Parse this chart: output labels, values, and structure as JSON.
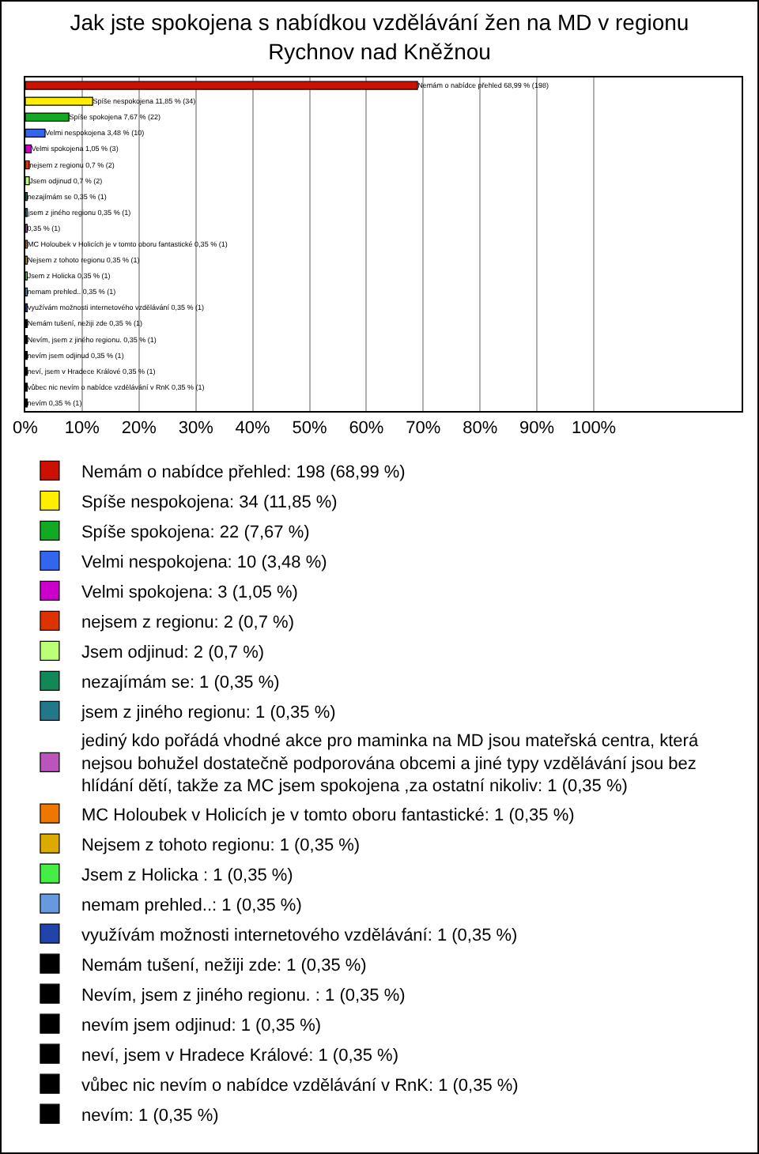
{
  "chart_data": {
    "type": "bar",
    "orientation": "horizontal",
    "title": "Jak jste spokojena s nabídkou vzdělávání žen na MD v regionu Rychnov nad Kněžnou",
    "categories": [
      null,
      null,
      null,
      null,
      null,
      null,
      null,
      null,
      null,
      null,
      null,
      null,
      null,
      null,
      null,
      null,
      null,
      null,
      null,
      null,
      null
    ],
    "series": [
      {
        "name": "Nemám o nabídce přehled: 198 (68,99 %)",
        "color": "#cc1100",
        "values": [
          68.99,
          null,
          null,
          null,
          null,
          null,
          null,
          null,
          null,
          null,
          null,
          null,
          null,
          null,
          null,
          null,
          null,
          null,
          null,
          null,
          null
        ],
        "value_labels": [
          "Nemám o nabídce přehled 68,99 % (198)",
          null,
          null,
          null,
          null,
          null,
          null,
          null,
          null,
          null,
          null,
          null,
          null,
          null,
          null,
          null,
          null,
          null,
          null,
          null,
          null
        ]
      },
      {
        "name": "Spíše nespokojena: 34 (11,85 %)",
        "color": "#ffee00",
        "values": [
          null,
          11.85,
          null,
          null,
          null,
          null,
          null,
          null,
          null,
          null,
          null,
          null,
          null,
          null,
          null,
          null,
          null,
          null,
          null,
          null,
          null
        ],
        "value_labels": [
          null,
          "Spíše nespokojena 11,85 % (34)",
          null,
          null,
          null,
          null,
          null,
          null,
          null,
          null,
          null,
          null,
          null,
          null,
          null,
          null,
          null,
          null,
          null,
          null,
          null
        ]
      },
      {
        "name": "Spíše spokojena: 22 (7,67 %)",
        "color": "#11aa22",
        "values": [
          null,
          null,
          7.67,
          null,
          null,
          null,
          null,
          null,
          null,
          null,
          null,
          null,
          null,
          null,
          null,
          null,
          null,
          null,
          null,
          null,
          null
        ],
        "value_labels": [
          null,
          null,
          "Spíše spokojena 7,67 % (22)",
          null,
          null,
          null,
          null,
          null,
          null,
          null,
          null,
          null,
          null,
          null,
          null,
          null,
          null,
          null,
          null,
          null,
          null
        ]
      },
      {
        "name": "Velmi nespokojena: 10 (3,48 %)",
        "color": "#3366ee",
        "values": [
          null,
          null,
          null,
          3.48,
          null,
          null,
          null,
          null,
          null,
          null,
          null,
          null,
          null,
          null,
          null,
          null,
          null,
          null,
          null,
          null,
          null
        ],
        "value_labels": [
          null,
          null,
          null,
          "Velmi nespokojena 3,48 % (10)",
          null,
          null,
          null,
          null,
          null,
          null,
          null,
          null,
          null,
          null,
          null,
          null,
          null,
          null,
          null,
          null,
          null
        ]
      },
      {
        "name": "Velmi spokojena: 3 (1,05 %)",
        "color": "#cc00cc",
        "values": [
          null,
          null,
          null,
          null,
          1.05,
          null,
          null,
          null,
          null,
          null,
          null,
          null,
          null,
          null,
          null,
          null,
          null,
          null,
          null,
          null,
          null
        ],
        "value_labels": [
          null,
          null,
          null,
          null,
          "Velmi spokojena 1,05 % (3)",
          null,
          null,
          null,
          null,
          null,
          null,
          null,
          null,
          null,
          null,
          null,
          null,
          null,
          null,
          null,
          null
        ]
      },
      {
        "name": "nejsem z regionu: 2 (0,7 %)",
        "color": "#dd3300",
        "values": [
          null,
          null,
          null,
          null,
          null,
          0.7,
          null,
          null,
          null,
          null,
          null,
          null,
          null,
          null,
          null,
          null,
          null,
          null,
          null,
          null,
          null
        ],
        "value_labels": [
          null,
          null,
          null,
          null,
          null,
          "nejsem z regionu 0,7 % (2)",
          null,
          null,
          null,
          null,
          null,
          null,
          null,
          null,
          null,
          null,
          null,
          null,
          null,
          null,
          null
        ]
      },
      {
        "name": "Jsem odjinud: 2 (0,7 %)",
        "color": "#bbff77",
        "values": [
          null,
          null,
          null,
          null,
          null,
          null,
          0.7,
          null,
          null,
          null,
          null,
          null,
          null,
          null,
          null,
          null,
          null,
          null,
          null,
          null,
          null
        ],
        "value_labels": [
          null,
          null,
          null,
          null,
          null,
          null,
          "Jsem odjinud 0,7 % (2)",
          null,
          null,
          null,
          null,
          null,
          null,
          null,
          null,
          null,
          null,
          null,
          null,
          null,
          null
        ]
      },
      {
        "name": "nezajímám se: 1 (0,35 %)",
        "color": "#118855",
        "values": [
          null,
          null,
          null,
          null,
          null,
          null,
          null,
          0.35,
          null,
          null,
          null,
          null,
          null,
          null,
          null,
          null,
          null,
          null,
          null,
          null,
          null
        ],
        "value_labels": [
          null,
          null,
          null,
          null,
          null,
          null,
          null,
          "nezajímám se 0,35 % (1)",
          null,
          null,
          null,
          null,
          null,
          null,
          null,
          null,
          null,
          null,
          null,
          null,
          null
        ]
      },
      {
        "name": "jsem z jiného regionu: 1 (0,35 %)",
        "color": "#227788",
        "values": [
          null,
          null,
          null,
          null,
          null,
          null,
          null,
          null,
          0.35,
          null,
          null,
          null,
          null,
          null,
          null,
          null,
          null,
          null,
          null,
          null,
          null
        ],
        "value_labels": [
          null,
          null,
          null,
          null,
          null,
          null,
          null,
          null,
          "jsem z jiného regionu 0,35 % (1)",
          null,
          null,
          null,
          null,
          null,
          null,
          null,
          null,
          null,
          null,
          null,
          null
        ]
      },
      {
        "name": "jediný kdo pořádá vhodné akce pro maminka na MD jsou mateřská centra, která nejsou bohužel dostatečně podporována obcemi a jiné typy vzdělávání jsou bez hlídání dětí, takže za MC jsem spokojena ,za ostatní nikoliv: 1 (0,35 %)",
        "color": "#bb55bb",
        "values": [
          null,
          null,
          null,
          null,
          null,
          null,
          null,
          null,
          null,
          0.35,
          null,
          null,
          null,
          null,
          null,
          null,
          null,
          null,
          null,
          null,
          null
        ],
        "value_labels": [
          null,
          null,
          null,
          null,
          null,
          null,
          null,
          null,
          null,
          "0,35 % (1)",
          null,
          null,
          null,
          null,
          null,
          null,
          null,
          null,
          null,
          null,
          null
        ]
      },
      {
        "name": "MC Holoubek v Holicích je v tomto oboru fantastické: 1 (0,35 %)",
        "color": "#ee7700",
        "values": [
          null,
          null,
          null,
          null,
          null,
          null,
          null,
          null,
          null,
          null,
          0.35,
          null,
          null,
          null,
          null,
          null,
          null,
          null,
          null,
          null,
          null
        ],
        "value_labels": [
          null,
          null,
          null,
          null,
          null,
          null,
          null,
          null,
          null,
          null,
          "MC Holoubek v Holicích je v tomto oboru fantastické 0,35 % (1)",
          null,
          null,
          null,
          null,
          null,
          null,
          null,
          null,
          null,
          null
        ]
      },
      {
        "name": "Nejsem z tohoto regionu: 1 (0,35 %)",
        "color": "#ddaa00",
        "values": [
          null,
          null,
          null,
          null,
          null,
          null,
          null,
          null,
          null,
          null,
          null,
          0.35,
          null,
          null,
          null,
          null,
          null,
          null,
          null,
          null,
          null
        ],
        "value_labels": [
          null,
          null,
          null,
          null,
          null,
          null,
          null,
          null,
          null,
          null,
          null,
          "Nejsem z tohoto regionu 0,35 % (1)",
          null,
          null,
          null,
          null,
          null,
          null,
          null,
          null,
          null
        ]
      },
      {
        "name": "Jsem z Holicka : 1 (0,35 %)",
        "color": "#44ee44",
        "values": [
          null,
          null,
          null,
          null,
          null,
          null,
          null,
          null,
          null,
          null,
          null,
          null,
          0.35,
          null,
          null,
          null,
          null,
          null,
          null,
          null,
          null
        ],
        "value_labels": [
          null,
          null,
          null,
          null,
          null,
          null,
          null,
          null,
          null,
          null,
          null,
          null,
          "Jsem z Holicka 0,35 % (1)",
          null,
          null,
          null,
          null,
          null,
          null,
          null,
          null
        ]
      },
      {
        "name": "nemam prehled..: 1 (0,35 %)",
        "color": "#6699dd",
        "values": [
          null,
          null,
          null,
          null,
          null,
          null,
          null,
          null,
          null,
          null,
          null,
          null,
          null,
          0.35,
          null,
          null,
          null,
          null,
          null,
          null,
          null
        ],
        "value_labels": [
          null,
          null,
          null,
          null,
          null,
          null,
          null,
          null,
          null,
          null,
          null,
          null,
          null,
          "nemam prehled.. 0,35 % (1)",
          null,
          null,
          null,
          null,
          null,
          null,
          null
        ]
      },
      {
        "name": "využívám možnosti internetového vzdělávání: 1 (0,35 %)",
        "color": "#2244aa",
        "values": [
          null,
          null,
          null,
          null,
          null,
          null,
          null,
          null,
          null,
          null,
          null,
          null,
          null,
          null,
          0.35,
          null,
          null,
          null,
          null,
          null,
          null
        ],
        "value_labels": [
          null,
          null,
          null,
          null,
          null,
          null,
          null,
          null,
          null,
          null,
          null,
          null,
          null,
          null,
          "využívám možnosti internetového vzdělávání 0,35 % (1)",
          null,
          null,
          null,
          null,
          null,
          null
        ]
      },
      {
        "name": "Nemám tušení, nežiji zde: 1 (0,35 %)",
        "color": "#000000",
        "values": [
          null,
          null,
          null,
          null,
          null,
          null,
          null,
          null,
          null,
          null,
          null,
          null,
          null,
          null,
          null,
          0.35,
          null,
          null,
          null,
          null,
          null
        ],
        "value_labels": [
          null,
          null,
          null,
          null,
          null,
          null,
          null,
          null,
          null,
          null,
          null,
          null,
          null,
          null,
          null,
          "Nemám tušení, nežiji zde 0,35 % (1)",
          null,
          null,
          null,
          null,
          null
        ]
      },
      {
        "name": "Nevím, jsem z jiného regionu. : 1 (0,35 %)",
        "color": "#000000",
        "values": [
          null,
          null,
          null,
          null,
          null,
          null,
          null,
          null,
          null,
          null,
          null,
          null,
          null,
          null,
          null,
          null,
          0.35,
          null,
          null,
          null,
          null
        ],
        "value_labels": [
          null,
          null,
          null,
          null,
          null,
          null,
          null,
          null,
          null,
          null,
          null,
          null,
          null,
          null,
          null,
          null,
          "Nevím, jsem z jiného regionu. 0,35 % (1)",
          null,
          null,
          null,
          null
        ]
      },
      {
        "name": "nevím jsem odjinud: 1 (0,35 %)",
        "color": "#000000",
        "values": [
          null,
          null,
          null,
          null,
          null,
          null,
          null,
          null,
          null,
          null,
          null,
          null,
          null,
          null,
          null,
          null,
          null,
          0.35,
          null,
          null,
          null
        ],
        "value_labels": [
          null,
          null,
          null,
          null,
          null,
          null,
          null,
          null,
          null,
          null,
          null,
          null,
          null,
          null,
          null,
          null,
          null,
          "nevím jsem odjinud 0,35 % (1)",
          null,
          null,
          null
        ]
      },
      {
        "name": "neví, jsem v Hradece Králové: 1 (0,35 %)",
        "color": "#000000",
        "values": [
          null,
          null,
          null,
          null,
          null,
          null,
          null,
          null,
          null,
          null,
          null,
          null,
          null,
          null,
          null,
          null,
          null,
          null,
          0.35,
          null,
          null
        ],
        "value_labels": [
          null,
          null,
          null,
          null,
          null,
          null,
          null,
          null,
          null,
          null,
          null,
          null,
          null,
          null,
          null,
          null,
          null,
          null,
          "neví, jsem v Hradece Králové 0,35 % (1)",
          null,
          null
        ]
      },
      {
        "name": "vůbec nic nevím o nabídce vzdělávání v RnK: 1 (0,35 %)",
        "color": "#000000",
        "values": [
          null,
          null,
          null,
          null,
          null,
          null,
          null,
          null,
          null,
          null,
          null,
          null,
          null,
          null,
          null,
          null,
          null,
          null,
          null,
          0.35,
          null
        ],
        "value_labels": [
          null,
          null,
          null,
          null,
          null,
          null,
          null,
          null,
          null,
          null,
          null,
          null,
          null,
          null,
          null,
          null,
          null,
          null,
          null,
          "vůbec nic nevím o nabídce vzdělávání v RnK 0,35 % (1)",
          null
        ]
      },
      {
        "name": "nevím: 1 (0,35 %)",
        "color": "#000000",
        "values": [
          null,
          null,
          null,
          null,
          null,
          null,
          null,
          null,
          null,
          null,
          null,
          null,
          null,
          null,
          null,
          null,
          null,
          null,
          null,
          null,
          0.35
        ],
        "value_labels": [
          null,
          null,
          null,
          null,
          null,
          null,
          null,
          null,
          null,
          null,
          null,
          null,
          null,
          null,
          null,
          null,
          null,
          null,
          null,
          null,
          "nevím 0,35 % (1)"
        ]
      }
    ],
    "xlim": [
      0,
      126
    ],
    "xticks": [
      {
        "value": 0,
        "label": "0%"
      },
      {
        "value": 10,
        "label": "10%"
      },
      {
        "value": 20,
        "label": "20%"
      },
      {
        "value": 30,
        "label": "30%"
      },
      {
        "value": 40,
        "label": "40%"
      },
      {
        "value": 50,
        "label": "50%"
      },
      {
        "value": 60,
        "label": "60%"
      },
      {
        "value": 70,
        "label": "70%"
      },
      {
        "value": 80,
        "label": "80%"
      },
      {
        "value": 90,
        "label": "90%"
      },
      {
        "value": 100,
        "label": "100%"
      }
    ],
    "grid": "x",
    "legend": "bottom",
    "tick_labels": "x"
  }
}
